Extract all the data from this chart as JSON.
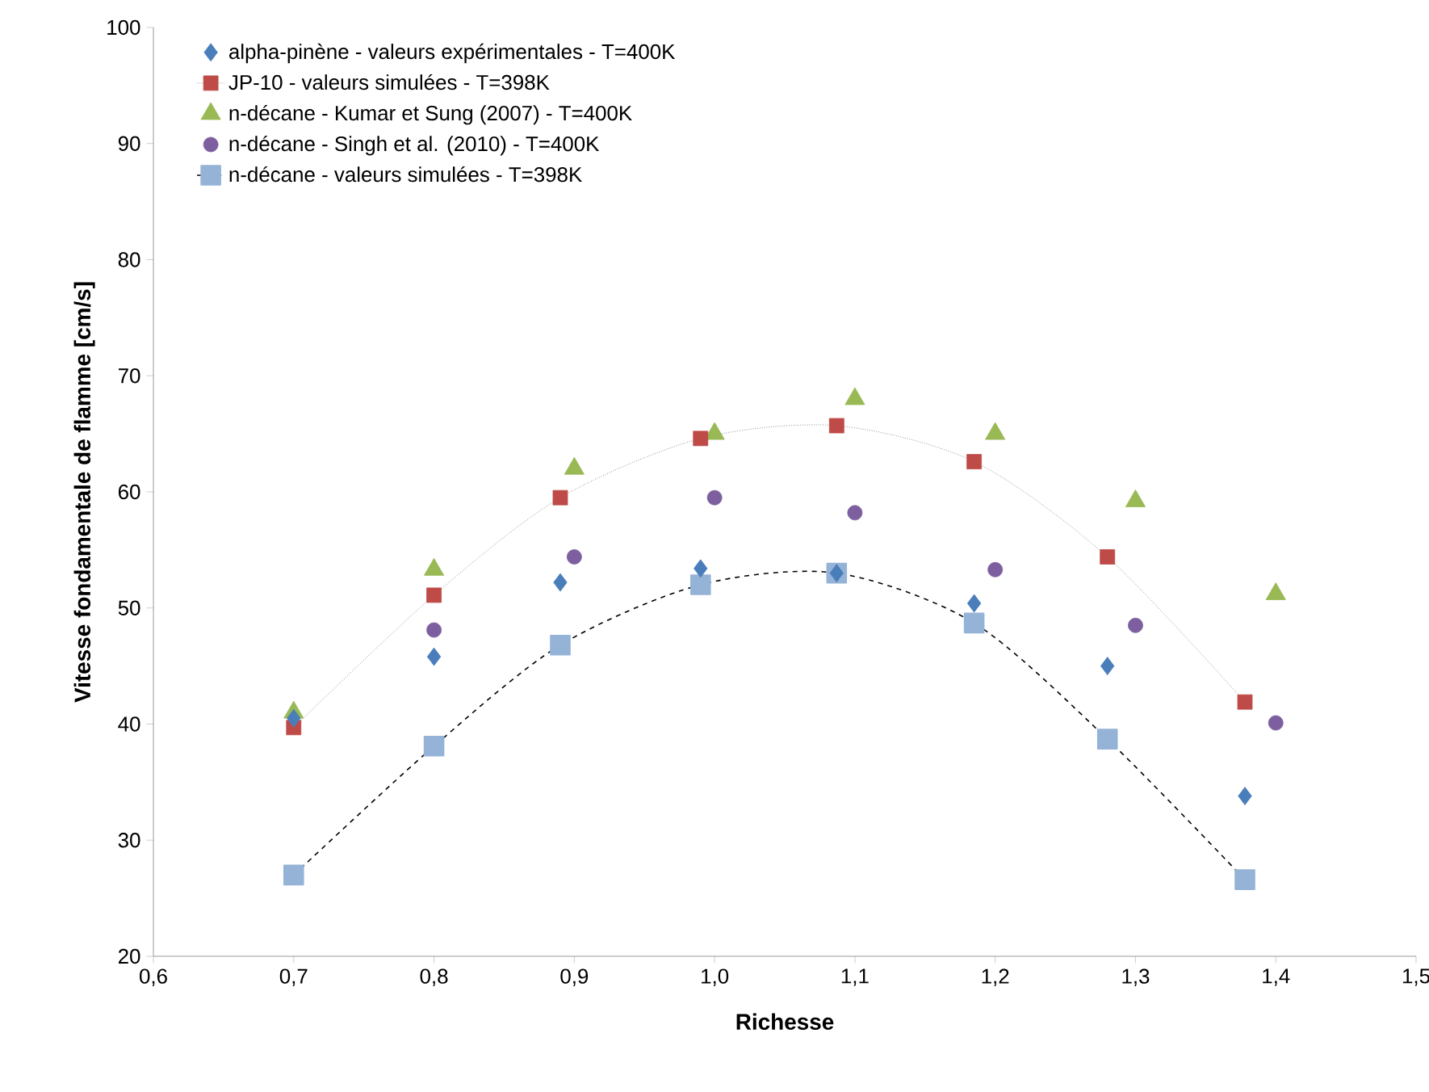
{
  "chart_data": {
    "type": "scatter",
    "xlabel": "Richesse",
    "ylabel": "Vitesse fondamentale de flamme [cm/s]",
    "xlim": [
      0.6,
      1.5
    ],
    "ylim": [
      20,
      100
    ],
    "xticks": [
      {
        "value": 0.6,
        "label": "0,6"
      },
      {
        "value": 0.7,
        "label": "0,7"
      },
      {
        "value": 0.8,
        "label": "0,8"
      },
      {
        "value": 0.9,
        "label": "0,9"
      },
      {
        "value": 1.0,
        "label": "1,0"
      },
      {
        "value": 1.1,
        "label": "1,1"
      },
      {
        "value": 1.2,
        "label": "1,2"
      },
      {
        "value": 1.3,
        "label": "1,3"
      },
      {
        "value": 1.4,
        "label": "1,4"
      },
      {
        "value": 1.5,
        "label": "1,5"
      }
    ],
    "yticks": [
      20,
      30,
      40,
      50,
      60,
      70,
      80,
      90,
      100
    ],
    "grid": false,
    "legend": "top left",
    "series": [
      {
        "name": "alpha-pinène - valeurs expérimentales - T=400K",
        "color": "#4a7ebb",
        "marker": "diamond",
        "x": [
          0.7,
          0.8,
          0.89,
          0.99,
          1.087,
          1.185,
          1.28,
          1.378
        ],
        "values": [
          40.5,
          45.8,
          52.2,
          53.4,
          53.0,
          50.4,
          45.0,
          33.8
        ]
      },
      {
        "name": "JP-10 - valeurs simulées - T=398K",
        "type": "line",
        "line_style": "dotted",
        "color": "#be4b48",
        "marker": "square",
        "x": [
          0.7,
          0.8,
          0.89,
          0.99,
          1.087,
          1.185,
          1.28,
          1.378
        ],
        "values": [
          39.7,
          51.1,
          59.5,
          64.6,
          65.7,
          62.6,
          54.4,
          41.9
        ]
      },
      {
        "name": "n-décane - Kumar et Sung (2007) - T=400K",
        "color": "#98b954",
        "marker": "triangle",
        "x": [
          0.7,
          0.8,
          0.9,
          1.0,
          1.1,
          1.2,
          1.3,
          1.4
        ],
        "values": [
          41.0,
          53.3,
          62.0,
          65.0,
          68.0,
          65.0,
          59.2,
          51.2
        ]
      },
      {
        "name": "n-décane - Singh et al. (2010) - T=400K",
        "color": "#7d5fa0",
        "marker": "circle",
        "x": [
          0.8,
          0.9,
          1.0,
          1.1,
          1.2,
          1.3,
          1.4
        ],
        "values": [
          48.1,
          54.4,
          59.5,
          58.2,
          53.3,
          48.5,
          40.1
        ]
      },
      {
        "name": "n-décane - valeurs simulées - T=398K",
        "type": "line",
        "line_style": "dashed",
        "color": "#95b3d7",
        "marker": "square",
        "x": [
          0.7,
          0.8,
          0.89,
          0.99,
          1.087,
          1.185,
          1.28,
          1.378
        ],
        "values": [
          27.0,
          38.1,
          46.8,
          52.0,
          53.0,
          48.7,
          38.7,
          26.6
        ]
      }
    ]
  }
}
